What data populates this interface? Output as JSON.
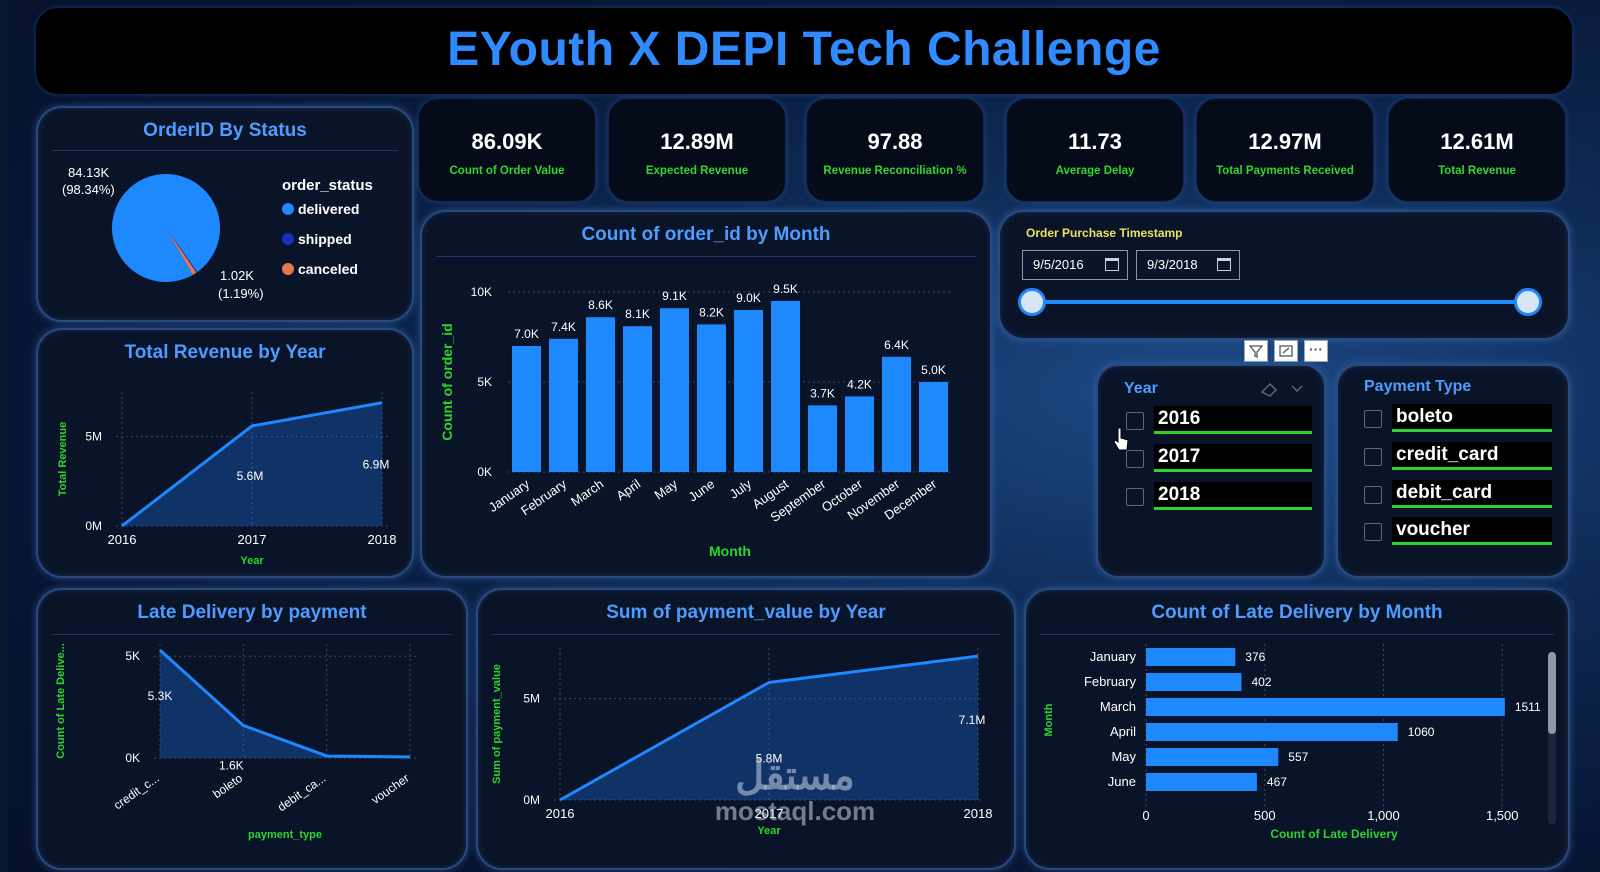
{
  "header": {
    "title": "EYouth X DEPI Tech Challenge"
  },
  "kpis": [
    {
      "value": "86.09K",
      "label": "Count of Order Value"
    },
    {
      "value": "12.89M",
      "label": "Expected Revenue"
    },
    {
      "value": "97.88",
      "label": "Revenue Reconciliation %"
    },
    {
      "value": "11.73",
      "label": "Average Delay"
    },
    {
      "value": "12.97M",
      "label": "Total Payments Received"
    },
    {
      "value": "12.61M",
      "label": "Total Revenue"
    }
  ],
  "date_filter": {
    "label": "Order Purchase Timestamp",
    "start": "9/5/2016",
    "end": "9/3/2018"
  },
  "year_slicer": {
    "title": "Year",
    "options": [
      "2016",
      "2017",
      "2018"
    ]
  },
  "payment_slicer": {
    "title": "Payment Type",
    "options": [
      "boleto",
      "credit_card",
      "debit_card",
      "voucher"
    ]
  },
  "watermark": {
    "arabic": "مستقل",
    "latin": "mostaql.com"
  },
  "colors": {
    "accent": "#1e88ff",
    "green": "#2ed42e",
    "title_blue": "#4e9cff"
  },
  "chart_data": [
    {
      "id": "status_pie",
      "type": "pie",
      "title": "OrderID By Status",
      "legend_title": "order_status",
      "slices": [
        {
          "name": "delivered",
          "value": 84130,
          "label": "84.13K",
          "pct": "(98.34%)",
          "color": "#1e88ff"
        },
        {
          "name": "shipped",
          "value": 300,
          "label": "",
          "pct": "",
          "color": "#1a2dbd"
        },
        {
          "name": "canceled",
          "value": 1020,
          "label": "1.02K",
          "pct": "(1.19%)",
          "color": "#e8784a"
        }
      ]
    },
    {
      "id": "revenue_year",
      "type": "area",
      "title": "Total Revenue by Year",
      "xlabel": "Year",
      "ylabel": "Total Revenue",
      "categories": [
        "2016",
        "2017",
        "2018"
      ],
      "values": [
        0,
        5.6,
        6.9
      ],
      "data_labels": [
        "",
        "5.6M",
        "6.9M"
      ],
      "yticks": [
        {
          "v": 0,
          "label": "0M"
        },
        {
          "v": 5,
          "label": "5M"
        }
      ],
      "ylim": [
        0,
        7.5
      ]
    },
    {
      "id": "orders_month",
      "type": "bar",
      "title": "Count of order_id by Month",
      "xlabel": "Month",
      "ylabel": "Count of order_id",
      "categories": [
        "January",
        "February",
        "March",
        "April",
        "May",
        "June",
        "July",
        "August",
        "September",
        "October",
        "November",
        "December"
      ],
      "values": [
        7.0,
        7.4,
        8.6,
        8.1,
        9.1,
        8.2,
        9.0,
        9.5,
        3.7,
        4.2,
        6.4,
        5.0
      ],
      "data_labels": [
        "7.0K",
        "7.4K",
        "8.6K",
        "8.1K",
        "9.1K",
        "8.2K",
        "9.0K",
        "9.5K",
        "3.7K",
        "4.2K",
        "6.4K",
        "5.0K"
      ],
      "yticks": [
        {
          "v": 0,
          "label": "0K"
        },
        {
          "v": 5,
          "label": "5K"
        },
        {
          "v": 10,
          "label": "10K"
        }
      ],
      "ylim": [
        0,
        10
      ]
    },
    {
      "id": "late_payment",
      "type": "area",
      "title": "Late Delivery by payment",
      "xlabel": "payment_type",
      "ylabel": "Count of Late Delive...",
      "categories": [
        "credit_c...",
        "boleto",
        "debit_ca...",
        "voucher"
      ],
      "values": [
        5.3,
        1.6,
        0.1,
        0.05
      ],
      "data_labels": [
        "5.3K",
        "1.6K",
        "",
        ""
      ],
      "yticks": [
        {
          "v": 0,
          "label": "0K"
        },
        {
          "v": 5,
          "label": "5K"
        }
      ],
      "ylim": [
        0,
        5.6
      ]
    },
    {
      "id": "payment_year",
      "type": "area",
      "title": "Sum of payment_value by Year",
      "xlabel": "Year",
      "ylabel": "Sum of payment_value",
      "categories": [
        "2016",
        "2017",
        "2018"
      ],
      "values": [
        0,
        5.8,
        7.1
      ],
      "data_labels": [
        "",
        "5.8M",
        "7.1M"
      ],
      "yticks": [
        {
          "v": 0,
          "label": "0M"
        },
        {
          "v": 5,
          "label": "5M"
        }
      ],
      "ylim": [
        0,
        7.5
      ]
    },
    {
      "id": "late_month",
      "type": "bar",
      "orientation": "horizontal",
      "title": "Count of Late Delivery by Month",
      "xlabel": "Count of Late Delivery",
      "ylabel": "Month",
      "categories": [
        "January",
        "February",
        "March",
        "April",
        "May",
        "June"
      ],
      "values": [
        376,
        402,
        1511,
        1060,
        557,
        467
      ],
      "data_labels": [
        "376",
        "402",
        "1511",
        "1060",
        "557",
        "467"
      ],
      "xticks": [
        {
          "v": 0,
          "label": "0"
        },
        {
          "v": 500,
          "label": "500"
        },
        {
          "v": 1000,
          "label": "1,000"
        },
        {
          "v": 1500,
          "label": "1,500"
        }
      ],
      "xlim": [
        0,
        1600
      ]
    }
  ]
}
